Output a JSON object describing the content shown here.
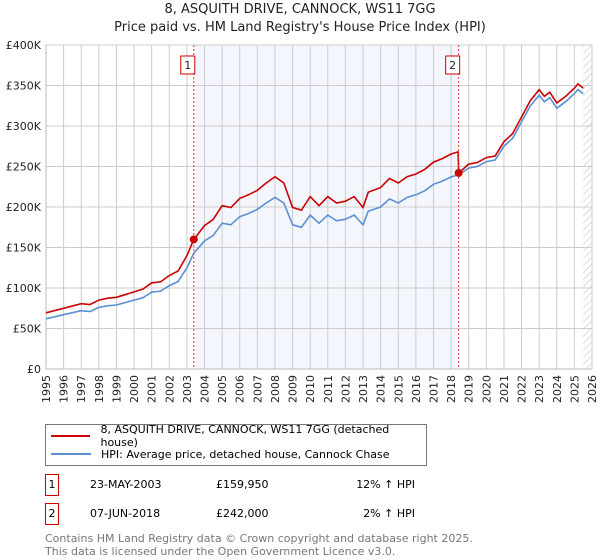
{
  "chart_data": {
    "type": "line",
    "title": "8, ASQUITH DRIVE, CANNOCK, WS11 7GG",
    "subtitle": "Price paid vs. HM Land Registry's House Price Index (HPI)",
    "xlim": [
      1995,
      2026
    ],
    "ylim": [
      0,
      400000
    ],
    "x_ticks": [
      "1995",
      "1996",
      "1997",
      "1998",
      "1999",
      "2000",
      "2001",
      "2002",
      "2003",
      "2004",
      "2005",
      "2006",
      "2007",
      "2008",
      "2009",
      "2010",
      "2011",
      "2012",
      "2013",
      "2014",
      "2015",
      "2016",
      "2017",
      "2018",
      "2019",
      "2020",
      "2021",
      "2022",
      "2023",
      "2024",
      "2025",
      "2026"
    ],
    "y_ticks": [
      {
        "v": 0,
        "label": "£0"
      },
      {
        "v": 50000,
        "label": "£50K"
      },
      {
        "v": 100000,
        "label": "£100K"
      },
      {
        "v": 150000,
        "label": "£150K"
      },
      {
        "v": 200000,
        "label": "£200K"
      },
      {
        "v": 250000,
        "label": "£250K"
      },
      {
        "v": 300000,
        "label": "£300K"
      },
      {
        "v": 350000,
        "label": "£350K"
      },
      {
        "v": 400000,
        "label": "£400K"
      }
    ],
    "grid": true,
    "series": [
      {
        "name": "8, ASQUITH DRIVE, CANNOCK, WS11 7GG (detached house)",
        "color": "#cc0000",
        "x": [
          1995,
          1996,
          1997,
          1997.5,
          1998,
          1998.5,
          1999,
          2000,
          2000.5,
          2001,
          2001.5,
          2002,
          2002.5,
          2003,
          2003.39,
          2004,
          2004.5,
          2005,
          2005.5,
          2006,
          2006.5,
          2007,
          2007.5,
          2008,
          2008.5,
          2009,
          2009.5,
          2010,
          2010.5,
          2011,
          2011.5,
          2012,
          2012.5,
          2013,
          2013.3,
          2014,
          2014.5,
          2015,
          2015.5,
          2016,
          2016.5,
          2017,
          2017.5,
          2018,
          2018.4,
          2018.43,
          2019,
          2019.5,
          2020,
          2020.5,
          2021,
          2021.5,
          2022,
          2022.5,
          2023,
          2023.3,
          2023.6,
          2024,
          2024.5,
          2025,
          2025.2,
          2025.5
        ],
        "y": [
          69400,
          75000,
          80600,
          79500,
          85100,
          87400,
          88500,
          95200,
          98600,
          106400,
          107500,
          115400,
          121000,
          140000,
          159950,
          177000,
          184800,
          201600,
          199400,
          210600,
          215000,
          220600,
          229600,
          237400,
          229600,
          199400,
          196000,
          212800,
          201600,
          212800,
          205000,
          207200,
          212800,
          199400,
          218400,
          224000,
          235200,
          229600,
          237400,
          240800,
          246400,
          255400,
          259800,
          265400,
          268000,
          242000,
          253000,
          255000,
          261000,
          263000,
          280500,
          290700,
          311000,
          331500,
          344800,
          336600,
          341700,
          328400,
          336600,
          346800,
          352000,
          346800
        ]
      },
      {
        "name": "HPI: Average price, detached house, Cannock Chase",
        "color": "#5b8fd4",
        "x": [
          1995,
          1996,
          1997,
          1997.5,
          1998,
          1998.5,
          1999,
          2000,
          2000.5,
          2001,
          2001.5,
          2002,
          2002.5,
          2003,
          2003.39,
          2004,
          2004.5,
          2005,
          2005.5,
          2006,
          2006.5,
          2007,
          2007.5,
          2008,
          2008.5,
          2009,
          2009.5,
          2010,
          2010.5,
          2011,
          2011.5,
          2012,
          2012.5,
          2013,
          2013.3,
          2014,
          2014.5,
          2015,
          2015.5,
          2016,
          2016.5,
          2017,
          2017.5,
          2018,
          2018.43,
          2019,
          2019.5,
          2020,
          2020.5,
          2021,
          2021.5,
          2022,
          2022.5,
          2023,
          2023.3,
          2023.6,
          2024,
          2024.5,
          2025,
          2025.2,
          2025.5
        ],
        "y": [
          62000,
          67000,
          72000,
          71000,
          76000,
          78000,
          79000,
          85000,
          88000,
          95000,
          96000,
          103000,
          108000,
          125000,
          143000,
          158000,
          165000,
          180000,
          178000,
          188000,
          192000,
          197000,
          205000,
          212000,
          205000,
          178000,
          175000,
          190000,
          180000,
          190000,
          183000,
          185000,
          190000,
          178000,
          195000,
          200000,
          210000,
          205000,
          212000,
          215000,
          220000,
          228000,
          232000,
          237000,
          240000,
          248000,
          250000,
          256000,
          258000,
          275000,
          285000,
          305000,
          325000,
          338000,
          330000,
          335000,
          322000,
          330000,
          340000,
          345000,
          340000
        ]
      }
    ],
    "sales": [
      {
        "num": "1",
        "date": "23-MAY-2003",
        "x": 2003.39,
        "price_value": 159950,
        "price": "£159,950",
        "hpi": "12% ↑ HPI"
      },
      {
        "num": "2",
        "date": "07-JUN-2018",
        "x": 2018.43,
        "price_value": 242000,
        "price": "£242,000",
        "hpi": "2% ↑ HPI"
      }
    ],
    "forecast_start": 2025.5
  },
  "footer": {
    "line1": "Contains HM Land Registry data © Crown copyright and database right 2025.",
    "line2": "This data is licensed under the Open Government Licence v3.0."
  }
}
